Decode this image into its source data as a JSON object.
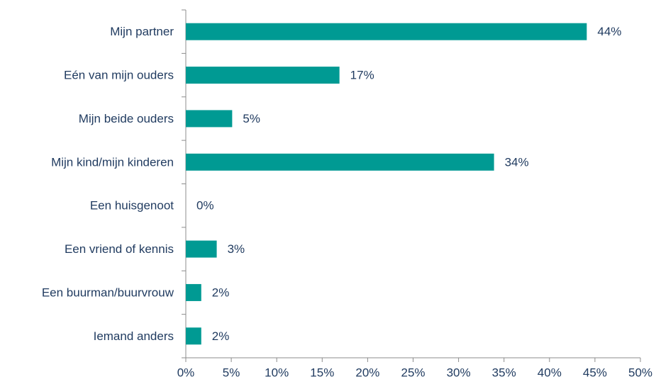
{
  "chart_data": {
    "type": "bar",
    "orientation": "horizontal",
    "categories": [
      "Mijn partner",
      "Eén van mijn ouders",
      "Mijn beide ouders",
      "Mijn kind/mijn kinderen",
      "Een huisgenoot",
      "Een vriend of kennis",
      "Een buurman/buurvrouw",
      "Iemand anders"
    ],
    "values": [
      44.1,
      16.9,
      5.1,
      33.9,
      0,
      3.4,
      1.7,
      1.7
    ],
    "value_labels": [
      "44%",
      "17%",
      "5%",
      "34%",
      "0%",
      "3%",
      "2%",
      "2%"
    ],
    "color": "#009a93",
    "xlim": [
      0,
      50
    ],
    "xticks": [
      {
        "value": 0,
        "label": "0%"
      },
      {
        "value": 5,
        "label": "5%"
      },
      {
        "value": 10,
        "label": "10%"
      },
      {
        "value": 15,
        "label": "15%"
      },
      {
        "value": 20,
        "label": "20%"
      },
      {
        "value": 25,
        "label": "25%"
      },
      {
        "value": 30,
        "label": "30%"
      },
      {
        "value": 35,
        "label": "35%"
      },
      {
        "value": 40,
        "label": "40%"
      },
      {
        "value": 45,
        "label": "45%"
      },
      {
        "value": 50,
        "label": "50%"
      }
    ],
    "grid": false
  }
}
